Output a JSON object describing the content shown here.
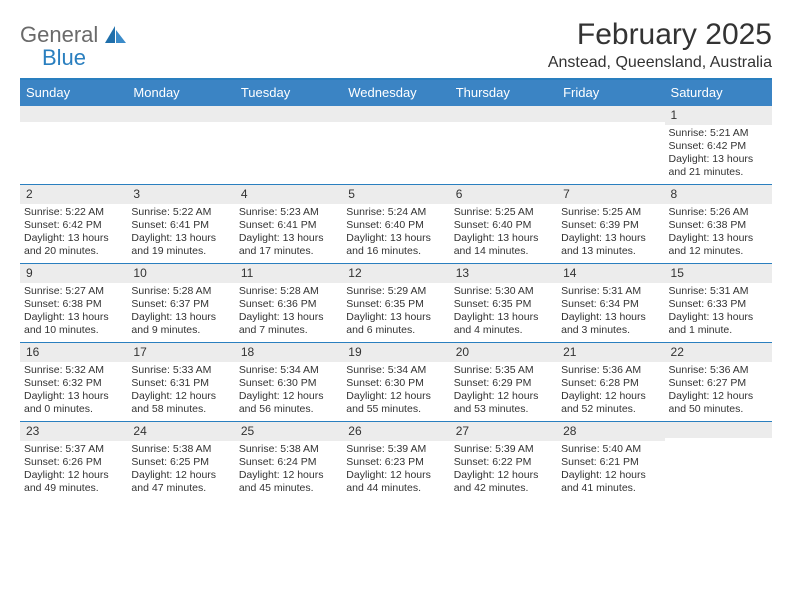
{
  "logo": {
    "general": "General",
    "blue": "Blue"
  },
  "title": "February 2025",
  "location": "Anstead, Queensland, Australia",
  "day_headers": [
    "Sunday",
    "Monday",
    "Tuesday",
    "Wednesday",
    "Thursday",
    "Friday",
    "Saturday"
  ],
  "colors": {
    "header_bar": "#3b84c4",
    "top_border": "#2a7fbf",
    "daynum_bg": "#ececec",
    "text": "#333333",
    "logo_general": "#6a6a6a",
    "logo_blue": "#2a7fbf"
  },
  "weeks": [
    [
      {
        "n": "",
        "sunrise": "",
        "sunset": "",
        "daylight": ""
      },
      {
        "n": "",
        "sunrise": "",
        "sunset": "",
        "daylight": ""
      },
      {
        "n": "",
        "sunrise": "",
        "sunset": "",
        "daylight": ""
      },
      {
        "n": "",
        "sunrise": "",
        "sunset": "",
        "daylight": ""
      },
      {
        "n": "",
        "sunrise": "",
        "sunset": "",
        "daylight": ""
      },
      {
        "n": "",
        "sunrise": "",
        "sunset": "",
        "daylight": ""
      },
      {
        "n": "1",
        "sunrise": "Sunrise: 5:21 AM",
        "sunset": "Sunset: 6:42 PM",
        "daylight": "Daylight: 13 hours and 21 minutes."
      }
    ],
    [
      {
        "n": "2",
        "sunrise": "Sunrise: 5:22 AM",
        "sunset": "Sunset: 6:42 PM",
        "daylight": "Daylight: 13 hours and 20 minutes."
      },
      {
        "n": "3",
        "sunrise": "Sunrise: 5:22 AM",
        "sunset": "Sunset: 6:41 PM",
        "daylight": "Daylight: 13 hours and 19 minutes."
      },
      {
        "n": "4",
        "sunrise": "Sunrise: 5:23 AM",
        "sunset": "Sunset: 6:41 PM",
        "daylight": "Daylight: 13 hours and 17 minutes."
      },
      {
        "n": "5",
        "sunrise": "Sunrise: 5:24 AM",
        "sunset": "Sunset: 6:40 PM",
        "daylight": "Daylight: 13 hours and 16 minutes."
      },
      {
        "n": "6",
        "sunrise": "Sunrise: 5:25 AM",
        "sunset": "Sunset: 6:40 PM",
        "daylight": "Daylight: 13 hours and 14 minutes."
      },
      {
        "n": "7",
        "sunrise": "Sunrise: 5:25 AM",
        "sunset": "Sunset: 6:39 PM",
        "daylight": "Daylight: 13 hours and 13 minutes."
      },
      {
        "n": "8",
        "sunrise": "Sunrise: 5:26 AM",
        "sunset": "Sunset: 6:38 PM",
        "daylight": "Daylight: 13 hours and 12 minutes."
      }
    ],
    [
      {
        "n": "9",
        "sunrise": "Sunrise: 5:27 AM",
        "sunset": "Sunset: 6:38 PM",
        "daylight": "Daylight: 13 hours and 10 minutes."
      },
      {
        "n": "10",
        "sunrise": "Sunrise: 5:28 AM",
        "sunset": "Sunset: 6:37 PM",
        "daylight": "Daylight: 13 hours and 9 minutes."
      },
      {
        "n": "11",
        "sunrise": "Sunrise: 5:28 AM",
        "sunset": "Sunset: 6:36 PM",
        "daylight": "Daylight: 13 hours and 7 minutes."
      },
      {
        "n": "12",
        "sunrise": "Sunrise: 5:29 AM",
        "sunset": "Sunset: 6:35 PM",
        "daylight": "Daylight: 13 hours and 6 minutes."
      },
      {
        "n": "13",
        "sunrise": "Sunrise: 5:30 AM",
        "sunset": "Sunset: 6:35 PM",
        "daylight": "Daylight: 13 hours and 4 minutes."
      },
      {
        "n": "14",
        "sunrise": "Sunrise: 5:31 AM",
        "sunset": "Sunset: 6:34 PM",
        "daylight": "Daylight: 13 hours and 3 minutes."
      },
      {
        "n": "15",
        "sunrise": "Sunrise: 5:31 AM",
        "sunset": "Sunset: 6:33 PM",
        "daylight": "Daylight: 13 hours and 1 minute."
      }
    ],
    [
      {
        "n": "16",
        "sunrise": "Sunrise: 5:32 AM",
        "sunset": "Sunset: 6:32 PM",
        "daylight": "Daylight: 13 hours and 0 minutes."
      },
      {
        "n": "17",
        "sunrise": "Sunrise: 5:33 AM",
        "sunset": "Sunset: 6:31 PM",
        "daylight": "Daylight: 12 hours and 58 minutes."
      },
      {
        "n": "18",
        "sunrise": "Sunrise: 5:34 AM",
        "sunset": "Sunset: 6:30 PM",
        "daylight": "Daylight: 12 hours and 56 minutes."
      },
      {
        "n": "19",
        "sunrise": "Sunrise: 5:34 AM",
        "sunset": "Sunset: 6:30 PM",
        "daylight": "Daylight: 12 hours and 55 minutes."
      },
      {
        "n": "20",
        "sunrise": "Sunrise: 5:35 AM",
        "sunset": "Sunset: 6:29 PM",
        "daylight": "Daylight: 12 hours and 53 minutes."
      },
      {
        "n": "21",
        "sunrise": "Sunrise: 5:36 AM",
        "sunset": "Sunset: 6:28 PM",
        "daylight": "Daylight: 12 hours and 52 minutes."
      },
      {
        "n": "22",
        "sunrise": "Sunrise: 5:36 AM",
        "sunset": "Sunset: 6:27 PM",
        "daylight": "Daylight: 12 hours and 50 minutes."
      }
    ],
    [
      {
        "n": "23",
        "sunrise": "Sunrise: 5:37 AM",
        "sunset": "Sunset: 6:26 PM",
        "daylight": "Daylight: 12 hours and 49 minutes."
      },
      {
        "n": "24",
        "sunrise": "Sunrise: 5:38 AM",
        "sunset": "Sunset: 6:25 PM",
        "daylight": "Daylight: 12 hours and 47 minutes."
      },
      {
        "n": "25",
        "sunrise": "Sunrise: 5:38 AM",
        "sunset": "Sunset: 6:24 PM",
        "daylight": "Daylight: 12 hours and 45 minutes."
      },
      {
        "n": "26",
        "sunrise": "Sunrise: 5:39 AM",
        "sunset": "Sunset: 6:23 PM",
        "daylight": "Daylight: 12 hours and 44 minutes."
      },
      {
        "n": "27",
        "sunrise": "Sunrise: 5:39 AM",
        "sunset": "Sunset: 6:22 PM",
        "daylight": "Daylight: 12 hours and 42 minutes."
      },
      {
        "n": "28",
        "sunrise": "Sunrise: 5:40 AM",
        "sunset": "Sunset: 6:21 PM",
        "daylight": "Daylight: 12 hours and 41 minutes."
      },
      {
        "n": "",
        "sunrise": "",
        "sunset": "",
        "daylight": ""
      }
    ]
  ]
}
